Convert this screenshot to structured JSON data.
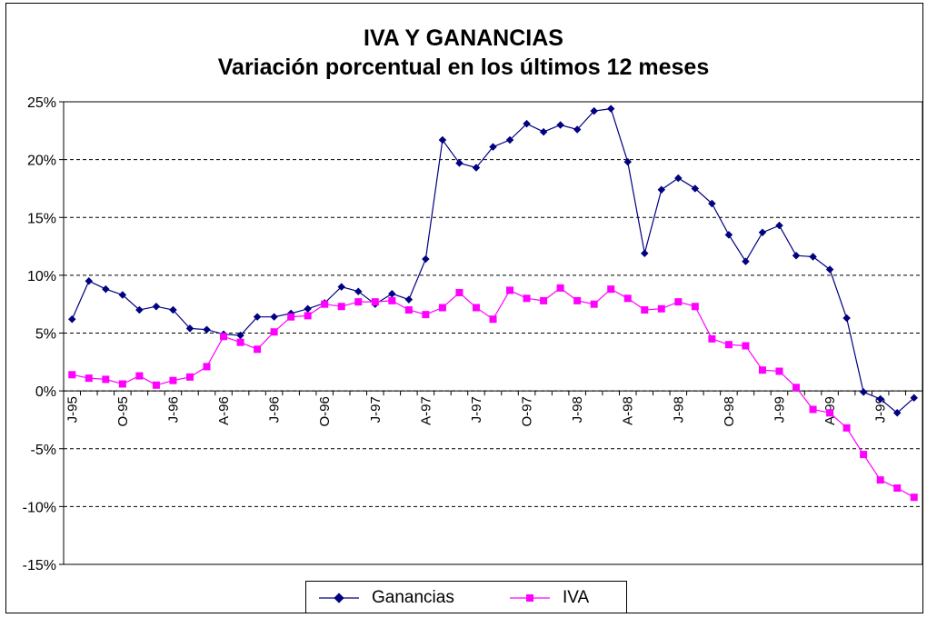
{
  "chart_data": {
    "type": "line",
    "title": "IVA Y GANANCIAS",
    "subtitle": "Variación porcentual en los últimos 12 meses",
    "xlabel": "",
    "ylabel": "",
    "ylim": [
      -15,
      25
    ],
    "yticks": [
      "25%",
      "20%",
      "15%",
      "10%",
      "5%",
      "0%",
      "-5%",
      "-10%",
      "-15%"
    ],
    "grid": true,
    "legend_position": "bottom",
    "categories": [
      "J-95",
      "",
      "",
      "O-95",
      "",
      "",
      "J-96",
      "",
      "",
      "A-96",
      "",
      "",
      "J-96",
      "",
      "",
      "O-96",
      "",
      "",
      "J-97",
      "",
      "",
      "A-97",
      "",
      "",
      "J-97",
      "",
      "",
      "O-97",
      "",
      "",
      "J-98",
      "",
      "",
      "A-98",
      "",
      "",
      "J-98",
      "",
      "",
      "O-98",
      "",
      "",
      "J-99",
      "",
      "",
      "A-99",
      "",
      "",
      "J-99",
      "",
      ""
    ],
    "series": [
      {
        "name": "Ganancias",
        "color": "#000080",
        "marker": "diamond",
        "values": [
          6.2,
          9.5,
          8.8,
          8.3,
          7.0,
          7.3,
          7.0,
          5.4,
          5.3,
          4.9,
          4.8,
          6.4,
          6.4,
          6.7,
          7.1,
          7.6,
          9.0,
          8.6,
          7.5,
          8.4,
          7.9,
          11.4,
          21.7,
          19.7,
          19.3,
          21.1,
          21.7,
          23.1,
          22.4,
          23.0,
          22.6,
          24.2,
          24.4,
          19.8,
          11.9,
          17.4,
          18.4,
          17.5,
          16.2,
          13.5,
          11.2,
          13.7,
          14.3,
          11.7,
          11.6,
          10.5,
          6.3,
          -0.1,
          -0.7,
          -1.9,
          -0.6
        ]
      },
      {
        "name": "IVA",
        "color": "#ff00ff",
        "marker": "square",
        "values": [
          1.4,
          1.1,
          1.0,
          0.6,
          1.3,
          0.5,
          0.9,
          1.2,
          2.1,
          4.7,
          4.2,
          3.6,
          5.1,
          6.4,
          6.5,
          7.5,
          7.3,
          7.7,
          7.7,
          7.8,
          7.0,
          6.6,
          7.2,
          8.5,
          7.2,
          6.2,
          8.7,
          8.0,
          7.8,
          8.9,
          7.8,
          7.5,
          8.8,
          8.0,
          7.0,
          7.1,
          7.7,
          7.3,
          4.5,
          4.0,
          3.9,
          1.8,
          1.7,
          0.3,
          -1.6,
          -1.9,
          -3.2,
          -5.5,
          -7.7,
          -8.4,
          -9.2
        ]
      }
    ]
  }
}
